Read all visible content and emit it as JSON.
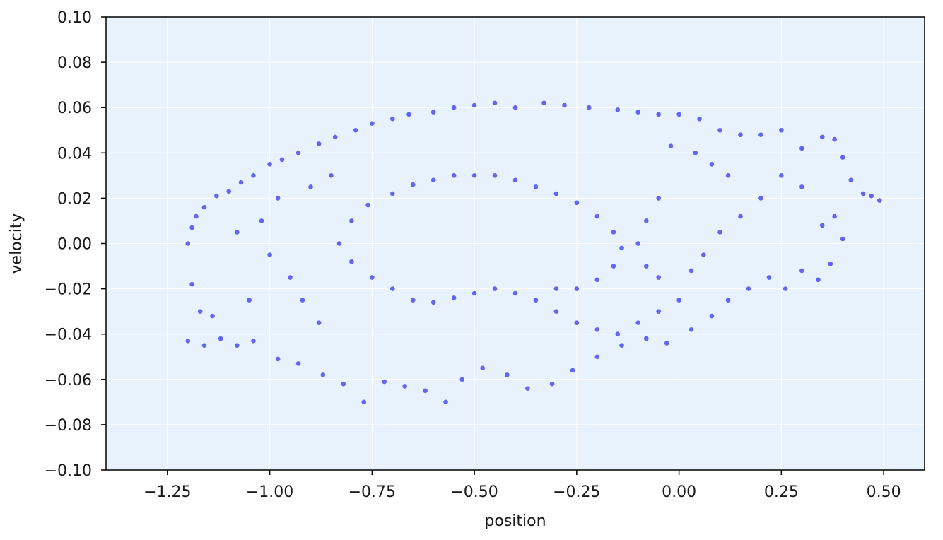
{
  "chart_data": {
    "type": "scatter",
    "title": "",
    "xlabel": "position",
    "ylabel": "velocity",
    "xlim": [
      -1.4,
      1.0
    ],
    "ylim": [
      -0.1,
      0.1
    ],
    "xlim_visible": [
      -1.4,
      0.6
    ],
    "xticks": [
      -1.25,
      -1.0,
      -0.75,
      -0.5,
      -0.25,
      0.0,
      0.25,
      0.5
    ],
    "xtick_labels": [
      "−1.25",
      "−1.00",
      "−0.75",
      "−0.50",
      "−0.25",
      "0.00",
      "0.25",
      "0.50"
    ],
    "yticks": [
      -0.1,
      -0.08,
      -0.06,
      -0.04,
      -0.02,
      0.0,
      0.02,
      0.04,
      0.06,
      0.08,
      0.1
    ],
    "ytick_labels": [
      "−0.10",
      "−0.08",
      "−0.06",
      "−0.04",
      "−0.02",
      "0.00",
      "0.02",
      "0.04",
      "0.06",
      "0.08",
      "0.10"
    ],
    "grid": true,
    "legend": "none",
    "colors": {
      "points": "#6464f5",
      "plot_background": "#e8f2fc",
      "grid": "#ffffff",
      "axes": "#000000"
    },
    "series": [
      {
        "points": [
          [
            -1.2,
            0.0
          ],
          [
            -1.19,
            0.007
          ],
          [
            -1.18,
            0.012
          ],
          [
            -1.16,
            0.016
          ],
          [
            -1.19,
            -0.018
          ],
          [
            -1.17,
            -0.03
          ],
          [
            -1.2,
            -0.043
          ],
          [
            -1.16,
            -0.045
          ],
          [
            -1.12,
            -0.042
          ],
          [
            -1.14,
            -0.032
          ],
          [
            -1.13,
            0.021
          ],
          [
            -1.1,
            0.023
          ],
          [
            -1.07,
            0.027
          ],
          [
            -1.04,
            0.03
          ],
          [
            -1.0,
            0.035
          ],
          [
            -0.97,
            0.037
          ],
          [
            -0.93,
            0.04
          ],
          [
            -0.88,
            0.044
          ],
          [
            -0.84,
            0.047
          ],
          [
            -0.79,
            0.05
          ],
          [
            -0.75,
            0.053
          ],
          [
            -0.7,
            0.055
          ],
          [
            -0.66,
            0.057
          ],
          [
            -0.6,
            0.058
          ],
          [
            -0.55,
            0.06
          ],
          [
            -0.5,
            0.061
          ],
          [
            -0.45,
            0.062
          ],
          [
            -0.4,
            0.06
          ],
          [
            -0.33,
            0.062
          ],
          [
            -0.28,
            0.061
          ],
          [
            -0.22,
            0.06
          ],
          [
            -0.15,
            0.059
          ],
          [
            -0.1,
            0.058
          ],
          [
            -0.05,
            0.057
          ],
          [
            0.0,
            0.057
          ],
          [
            0.05,
            0.055
          ],
          [
            0.1,
            0.05
          ],
          [
            0.15,
            0.048
          ],
          [
            0.2,
            0.048
          ],
          [
            0.25,
            0.05
          ],
          [
            0.3,
            0.042
          ],
          [
            0.35,
            0.047
          ],
          [
            0.38,
            0.046
          ],
          [
            0.4,
            0.038
          ],
          [
            0.42,
            0.028
          ],
          [
            0.45,
            0.022
          ],
          [
            0.47,
            0.021
          ],
          [
            0.49,
            0.019
          ],
          [
            -1.08,
            -0.045
          ],
          [
            -1.04,
            -0.043
          ],
          [
            -0.98,
            -0.051
          ],
          [
            -0.93,
            -0.053
          ],
          [
            -0.87,
            -0.058
          ],
          [
            -0.82,
            -0.062
          ],
          [
            -0.77,
            -0.07
          ],
          [
            -0.72,
            -0.061
          ],
          [
            -0.67,
            -0.063
          ],
          [
            -0.62,
            -0.065
          ],
          [
            -0.57,
            -0.07
          ],
          [
            -0.53,
            -0.06
          ],
          [
            -0.48,
            -0.055
          ],
          [
            -0.42,
            -0.058
          ],
          [
            -0.37,
            -0.064
          ],
          [
            -0.31,
            -0.062
          ],
          [
            -0.26,
            -0.056
          ],
          [
            -0.2,
            -0.05
          ],
          [
            -0.14,
            -0.045
          ],
          [
            -0.08,
            -0.042
          ],
          [
            -0.03,
            -0.044
          ],
          [
            0.03,
            -0.038
          ],
          [
            0.08,
            -0.032
          ],
          [
            0.12,
            -0.025
          ],
          [
            0.17,
            -0.02
          ],
          [
            0.22,
            -0.015
          ],
          [
            0.26,
            -0.02
          ],
          [
            0.3,
            -0.012
          ],
          [
            0.34,
            -0.016
          ],
          [
            0.37,
            -0.009
          ],
          [
            0.4,
            0.002
          ],
          [
            0.38,
            0.012
          ],
          [
            0.35,
            0.008
          ],
          [
            0.3,
            0.025
          ],
          [
            0.25,
            0.03
          ],
          [
            0.2,
            0.02
          ],
          [
            0.15,
            0.012
          ],
          [
            0.1,
            0.005
          ],
          [
            0.06,
            -0.005
          ],
          [
            0.03,
            -0.012
          ],
          [
            0.0,
            -0.025
          ],
          [
            -0.05,
            -0.03
          ],
          [
            -0.1,
            -0.035
          ],
          [
            -0.15,
            -0.04
          ],
          [
            -0.2,
            -0.038
          ],
          [
            -0.25,
            -0.035
          ],
          [
            -0.3,
            -0.03
          ],
          [
            -0.35,
            -0.025
          ],
          [
            -0.4,
            -0.022
          ],
          [
            -0.45,
            -0.02
          ],
          [
            -0.5,
            -0.022
          ],
          [
            -0.55,
            -0.024
          ],
          [
            -0.6,
            -0.026
          ],
          [
            -0.65,
            -0.025
          ],
          [
            -0.7,
            -0.02
          ],
          [
            -0.75,
            -0.015
          ],
          [
            -0.8,
            -0.008
          ],
          [
            -0.83,
            0.0
          ],
          [
            -0.8,
            0.01
          ],
          [
            -0.76,
            0.017
          ],
          [
            -0.7,
            0.022
          ],
          [
            -0.65,
            0.026
          ],
          [
            -0.6,
            0.028
          ],
          [
            -0.55,
            0.03
          ],
          [
            -0.5,
            0.03
          ],
          [
            -0.45,
            0.03
          ],
          [
            -0.4,
            0.028
          ],
          [
            -0.35,
            0.025
          ],
          [
            -0.3,
            0.022
          ],
          [
            -0.25,
            0.018
          ],
          [
            -0.2,
            0.012
          ],
          [
            -0.16,
            0.005
          ],
          [
            -0.14,
            -0.002
          ],
          [
            -0.16,
            -0.01
          ],
          [
            -0.2,
            -0.016
          ],
          [
            -0.25,
            -0.02
          ],
          [
            -0.3,
            -0.02
          ],
          [
            -0.02,
            0.043
          ],
          [
            0.04,
            0.04
          ],
          [
            0.08,
            0.035
          ],
          [
            0.12,
            0.03
          ],
          [
            -0.05,
            0.02
          ],
          [
            -0.08,
            0.01
          ],
          [
            -0.1,
            0.0
          ],
          [
            -0.08,
            -0.01
          ],
          [
            -0.05,
            -0.015
          ],
          [
            -1.0,
            -0.005
          ],
          [
            -1.02,
            0.01
          ],
          [
            -0.98,
            0.02
          ],
          [
            -0.95,
            -0.015
          ],
          [
            -0.92,
            -0.025
          ],
          [
            -0.9,
            0.025
          ],
          [
            -1.05,
            -0.025
          ],
          [
            -1.08,
            0.005
          ],
          [
            -0.88,
            -0.035
          ],
          [
            -0.85,
            0.03
          ]
        ]
      }
    ]
  }
}
